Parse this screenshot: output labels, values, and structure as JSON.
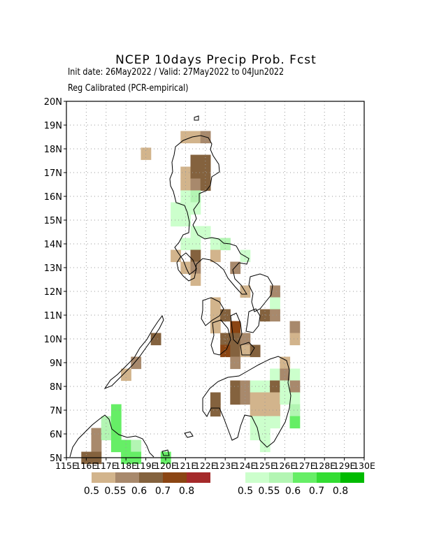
{
  "header": {
    "title": "NCEP 10days Precip Prob. Fcst",
    "subtitle_line1": "Init date: 26May2022 / Valid: 27May2022 to 04Jun2022",
    "subtitle_line2": "Reg Calibrated (PCR-empirical)"
  },
  "chart_data": {
    "type": "heatmap",
    "title": "NCEP 10days Precip Prob. Fcst",
    "xlim": [
      115,
      130
    ],
    "ylim": [
      5,
      20
    ],
    "x_ticks": [
      "115E",
      "116E",
      "117E",
      "118E",
      "119E",
      "120E",
      "121E",
      "122E",
      "123E",
      "124E",
      "125E",
      "126E",
      "127E",
      "128E",
      "129E",
      "130E"
    ],
    "y_ticks": [
      "5N",
      "6N",
      "7N",
      "8N",
      "9N",
      "10N",
      "11N",
      "12N",
      "13N",
      "14N",
      "15N",
      "16N",
      "17N",
      "18N",
      "19N",
      "20N"
    ],
    "grid": true,
    "dry_legend": {
      "labels": [
        "0.5",
        "0.55",
        "0.6",
        "0.7",
        "0.8"
      ],
      "colors": [
        "#d2b48c",
        "#a8896c",
        "#84623e",
        "#8b4513",
        "#a52a2a"
      ]
    },
    "wet_legend": {
      "labels": [
        "0.5",
        "0.55",
        "0.6",
        "0.7",
        "0.8"
      ],
      "colors": [
        "#ccffcc",
        "#b3f5b3",
        "#66ee66",
        "#33dd33",
        "#00bb00"
      ]
    },
    "cells": [
      {
        "lon": 119.0,
        "lat": 17.8,
        "cat": "dry",
        "level": 1
      },
      {
        "lon": 121.5,
        "lat": 18.5,
        "cat": "dry",
        "level": 1
      },
      {
        "lon": 121.0,
        "lat": 18.5,
        "cat": "dry",
        "level": 1
      },
      {
        "lon": 121.5,
        "lat": 17.5,
        "cat": "dry",
        "level": 3
      },
      {
        "lon": 122.0,
        "lat": 17.5,
        "cat": "dry",
        "level": 3
      },
      {
        "lon": 121.0,
        "lat": 17.0,
        "cat": "dry",
        "level": 1
      },
      {
        "lon": 121.5,
        "lat": 17.0,
        "cat": "dry",
        "level": 3
      },
      {
        "lon": 122.0,
        "lat": 17.0,
        "cat": "dry",
        "level": 3
      },
      {
        "lon": 122.0,
        "lat": 18.5,
        "cat": "dry",
        "level": 2
      },
      {
        "lon": 121.0,
        "lat": 16.5,
        "cat": "dry",
        "level": 1
      },
      {
        "lon": 121.5,
        "lat": 16.5,
        "cat": "dry",
        "level": 2
      },
      {
        "lon": 122.0,
        "lat": 16.5,
        "cat": "dry",
        "level": 3
      },
      {
        "lon": 121.0,
        "lat": 16.0,
        "cat": "wet",
        "level": 1
      },
      {
        "lon": 121.5,
        "lat": 16.0,
        "cat": "wet",
        "level": 2
      },
      {
        "lon": 121.0,
        "lat": 15.5,
        "cat": "wet",
        "level": 1
      },
      {
        "lon": 120.5,
        "lat": 15.5,
        "cat": "wet",
        "level": 1
      },
      {
        "lon": 121.5,
        "lat": 15.5,
        "cat": "wet",
        "level": 1
      },
      {
        "lon": 120.5,
        "lat": 15.0,
        "cat": "wet",
        "level": 1
      },
      {
        "lon": 121.0,
        "lat": 15.0,
        "cat": "wet",
        "level": 1
      },
      {
        "lon": 121.5,
        "lat": 14.5,
        "cat": "wet",
        "level": 1
      },
      {
        "lon": 122.0,
        "lat": 14.5,
        "cat": "wet",
        "level": 1
      },
      {
        "lon": 121.0,
        "lat": 14.0,
        "cat": "wet",
        "level": 1
      },
      {
        "lon": 121.5,
        "lat": 14.0,
        "cat": "wet",
        "level": 1
      },
      {
        "lon": 122.5,
        "lat": 14.0,
        "cat": "wet",
        "level": 1
      },
      {
        "lon": 123.0,
        "lat": 14.0,
        "cat": "wet",
        "level": 2
      },
      {
        "lon": 121.5,
        "lat": 13.5,
        "cat": "dry",
        "level": 3
      },
      {
        "lon": 120.5,
        "lat": 13.5,
        "cat": "dry",
        "level": 1
      },
      {
        "lon": 122.5,
        "lat": 13.5,
        "cat": "dry",
        "level": 1
      },
      {
        "lon": 121.0,
        "lat": 13.0,
        "cat": "dry",
        "level": 1
      },
      {
        "lon": 121.5,
        "lat": 13.0,
        "cat": "dry",
        "level": 2
      },
      {
        "lon": 121.5,
        "lat": 12.5,
        "cat": "dry",
        "level": 1
      },
      {
        "lon": 123.5,
        "lat": 13.0,
        "cat": "dry",
        "level": 2
      },
      {
        "lon": 124.0,
        "lat": 13.5,
        "cat": "wet",
        "level": 1
      },
      {
        "lon": 124.0,
        "lat": 12.0,
        "cat": "dry",
        "level": 1
      },
      {
        "lon": 125.5,
        "lat": 12.0,
        "cat": "dry",
        "level": 2
      },
      {
        "lon": 125.5,
        "lat": 11.5,
        "cat": "wet",
        "level": 1
      },
      {
        "lon": 125.0,
        "lat": 11.0,
        "cat": "dry",
        "level": 3
      },
      {
        "lon": 125.5,
        "lat": 11.0,
        "cat": "dry",
        "level": 2
      },
      {
        "lon": 122.5,
        "lat": 11.5,
        "cat": "dry",
        "level": 1
      },
      {
        "lon": 122.5,
        "lat": 11.0,
        "cat": "dry",
        "level": 1
      },
      {
        "lon": 123.0,
        "lat": 11.0,
        "cat": "dry",
        "level": 3
      },
      {
        "lon": 122.5,
        "lat": 10.5,
        "cat": "dry",
        "level": 1
      },
      {
        "lon": 123.5,
        "lat": 10.5,
        "cat": "dry",
        "level": 4
      },
      {
        "lon": 123.0,
        "lat": 10.0,
        "cat": "dry",
        "level": 3
      },
      {
        "lon": 123.5,
        "lat": 10.0,
        "cat": "dry",
        "level": 3
      },
      {
        "lon": 124.0,
        "lat": 10.0,
        "cat": "dry",
        "level": 2
      },
      {
        "lon": 123.0,
        "lat": 9.5,
        "cat": "dry",
        "level": 4
      },
      {
        "lon": 123.5,
        "lat": 9.5,
        "cat": "dry",
        "level": 3
      },
      {
        "lon": 124.0,
        "lat": 9.5,
        "cat": "dry",
        "level": 1
      },
      {
        "lon": 124.5,
        "lat": 9.5,
        "cat": "dry",
        "level": 3
      },
      {
        "lon": 123.5,
        "lat": 9.0,
        "cat": "dry",
        "level": 2
      },
      {
        "lon": 126.5,
        "lat": 10.5,
        "cat": "dry",
        "level": 2
      },
      {
        "lon": 126.5,
        "lat": 10.0,
        "cat": "dry",
        "level": 1
      },
      {
        "lon": 119.5,
        "lat": 10.0,
        "cat": "dry",
        "level": 3
      },
      {
        "lon": 118.5,
        "lat": 9.0,
        "cat": "dry",
        "level": 2
      },
      {
        "lon": 118.0,
        "lat": 8.5,
        "cat": "dry",
        "level": 1
      },
      {
        "lon": 126.0,
        "lat": 9.0,
        "cat": "dry",
        "level": 1
      },
      {
        "lon": 125.5,
        "lat": 8.5,
        "cat": "wet",
        "level": 1
      },
      {
        "lon": 126.0,
        "lat": 8.5,
        "cat": "dry",
        "level": 2
      },
      {
        "lon": 126.5,
        "lat": 8.5,
        "cat": "wet",
        "level": 1
      },
      {
        "lon": 123.5,
        "lat": 8.0,
        "cat": "dry",
        "level": 3
      },
      {
        "lon": 124.0,
        "lat": 8.0,
        "cat": "dry",
        "level": 2
      },
      {
        "lon": 124.5,
        "lat": 8.0,
        "cat": "wet",
        "level": 1
      },
      {
        "lon": 125.0,
        "lat": 8.0,
        "cat": "wet",
        "level": 1
      },
      {
        "lon": 125.5,
        "lat": 8.0,
        "cat": "dry",
        "level": 3
      },
      {
        "lon": 126.0,
        "lat": 8.0,
        "cat": "wet",
        "level": 1
      },
      {
        "lon": 126.5,
        "lat": 8.0,
        "cat": "dry",
        "level": 2
      },
      {
        "lon": 122.5,
        "lat": 7.5,
        "cat": "dry",
        "level": 3
      },
      {
        "lon": 123.5,
        "lat": 7.5,
        "cat": "dry",
        "level": 3
      },
      {
        "lon": 124.0,
        "lat": 7.5,
        "cat": "dry",
        "level": 2
      },
      {
        "lon": 124.5,
        "lat": 7.5,
        "cat": "dry",
        "level": 1
      },
      {
        "lon": 125.0,
        "lat": 7.5,
        "cat": "dry",
        "level": 1
      },
      {
        "lon": 125.5,
        "lat": 7.5,
        "cat": "dry",
        "level": 1
      },
      {
        "lon": 126.0,
        "lat": 7.5,
        "cat": "wet",
        "level": 1
      },
      {
        "lon": 126.5,
        "lat": 7.5,
        "cat": "wet",
        "level": 1
      },
      {
        "lon": 122.5,
        "lat": 7.0,
        "cat": "dry",
        "level": 3
      },
      {
        "lon": 124.5,
        "lat": 7.0,
        "cat": "dry",
        "level": 1
      },
      {
        "lon": 125.0,
        "lat": 7.0,
        "cat": "dry",
        "level": 1
      },
      {
        "lon": 125.5,
        "lat": 7.0,
        "cat": "dry",
        "level": 1
      },
      {
        "lon": 126.5,
        "lat": 7.0,
        "cat": "wet",
        "level": 2
      },
      {
        "lon": 126.5,
        "lat": 6.5,
        "cat": "wet",
        "level": 3
      },
      {
        "lon": 124.5,
        "lat": 6.5,
        "cat": "wet",
        "level": 1
      },
      {
        "lon": 125.0,
        "lat": 6.5,
        "cat": "wet",
        "level": 1
      },
      {
        "lon": 125.5,
        "lat": 6.5,
        "cat": "wet",
        "level": 1
      },
      {
        "lon": 124.5,
        "lat": 6.0,
        "cat": "wet",
        "level": 1
      },
      {
        "lon": 125.0,
        "lat": 6.0,
        "cat": "wet",
        "level": 1
      },
      {
        "lon": 125.0,
        "lat": 5.5,
        "cat": "wet",
        "level": 1
      },
      {
        "lon": 117.5,
        "lat": 7.0,
        "cat": "wet",
        "level": 3
      },
      {
        "lon": 117.0,
        "lat": 6.5,
        "cat": "wet",
        "level": 2
      },
      {
        "lon": 117.5,
        "lat": 6.5,
        "cat": "wet",
        "level": 3
      },
      {
        "lon": 116.5,
        "lat": 6.0,
        "cat": "dry",
        "level": 2
      },
      {
        "lon": 117.0,
        "lat": 6.0,
        "cat": "wet",
        "level": 2
      },
      {
        "lon": 117.5,
        "lat": 6.0,
        "cat": "wet",
        "level": 3
      },
      {
        "lon": 116.5,
        "lat": 5.5,
        "cat": "dry",
        "level": 2
      },
      {
        "lon": 117.5,
        "lat": 5.5,
        "cat": "wet",
        "level": 3
      },
      {
        "lon": 118.0,
        "lat": 5.5,
        "cat": "wet",
        "level": 3
      },
      {
        "lon": 118.5,
        "lat": 5.5,
        "cat": "wet",
        "level": 2
      },
      {
        "lon": 118.0,
        "lat": 5.0,
        "cat": "wet",
        "level": 3
      },
      {
        "lon": 118.5,
        "lat": 5.0,
        "cat": "wet",
        "level": 3
      },
      {
        "lon": 116.0,
        "lat": 5.0,
        "cat": "dry",
        "level": 3
      },
      {
        "lon": 116.5,
        "lat": 5.0,
        "cat": "dry",
        "level": 3
      },
      {
        "lon": 120.0,
        "lat": 5.0,
        "cat": "wet",
        "level": 3
      }
    ]
  }
}
